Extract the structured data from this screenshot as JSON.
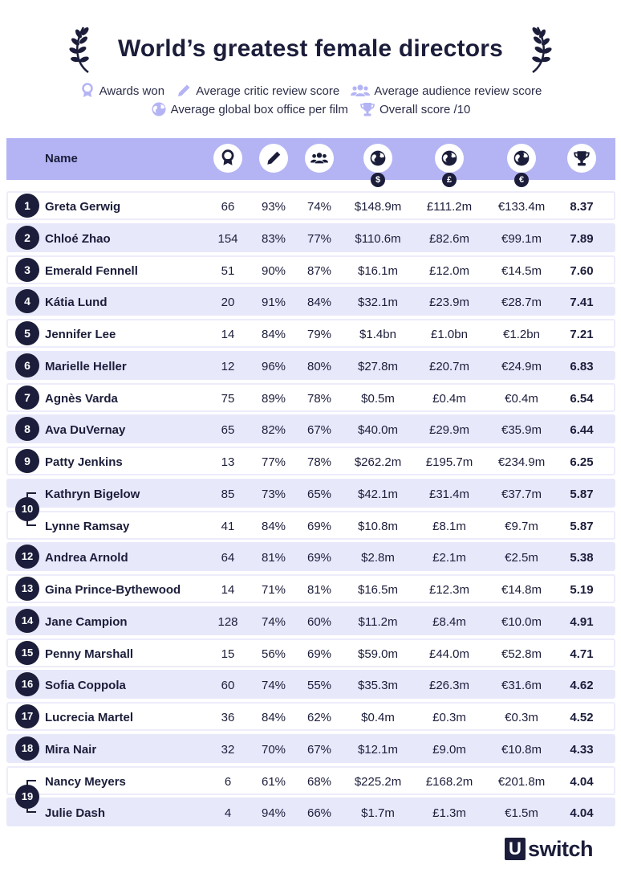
{
  "title": "World’s greatest female directors",
  "legend": {
    "awards": "Awards won",
    "critic": "Average critic review score",
    "audience": "Average audience review score",
    "box_office": "Average global box office per film",
    "overall": "Overall score /10"
  },
  "header": {
    "name": "Name",
    "currency_usd": "$",
    "currency_gbp": "£",
    "currency_eur": "€"
  },
  "colors": {
    "accent": "#b4b4f5",
    "row_shade": "#e8e8fb",
    "ink": "#1b1d3a"
  },
  "rows": [
    {
      "rank": "1",
      "name": "Greta Gerwig",
      "awards": "66",
      "critic": "93%",
      "audience": "74%",
      "usd": "$148.9m",
      "gbp": "£111.2m",
      "eur": "€133.4m",
      "score": "8.37"
    },
    {
      "rank": "2",
      "name": "Chloé Zhao",
      "awards": "154",
      "critic": "83%",
      "audience": "77%",
      "usd": "$110.6m",
      "gbp": "£82.6m",
      "eur": "€99.1m",
      "score": "7.89"
    },
    {
      "rank": "3",
      "name": "Emerald Fennell",
      "awards": "51",
      "critic": "90%",
      "audience": "87%",
      "usd": "$16.1m",
      "gbp": "£12.0m",
      "eur": "€14.5m",
      "score": "7.60"
    },
    {
      "rank": "4",
      "name": "Kátia Lund",
      "awards": "20",
      "critic": "91%",
      "audience": "84%",
      "usd": "$32.1m",
      "gbp": "£23.9m",
      "eur": "€28.7m",
      "score": "7.41"
    },
    {
      "rank": "5",
      "name": "Jennifer Lee",
      "awards": "14",
      "critic": "84%",
      "audience": "79%",
      "usd": "$1.4bn",
      "gbp": "£1.0bn",
      "eur": "€1.2bn",
      "score": "7.21"
    },
    {
      "rank": "6",
      "name": "Marielle Heller",
      "awards": "12",
      "critic": "96%",
      "audience": "80%",
      "usd": "$27.8m",
      "gbp": "£20.7m",
      "eur": "€24.9m",
      "score": "6.83"
    },
    {
      "rank": "7",
      "name": "Agnès Varda",
      "awards": "75",
      "critic": "89%",
      "audience": "78%",
      "usd": "$0.5m",
      "gbp": "£0.4m",
      "eur": "€0.4m",
      "score": "6.54"
    },
    {
      "rank": "8",
      "name": "Ava DuVernay",
      "awards": "65",
      "critic": "82%",
      "audience": "67%",
      "usd": "$40.0m",
      "gbp": "£29.9m",
      "eur": "€35.9m",
      "score": "6.44"
    },
    {
      "rank": "9",
      "name": "Patty Jenkins",
      "awards": "13",
      "critic": "77%",
      "audience": "78%",
      "usd": "$262.2m",
      "gbp": "£195.7m",
      "eur": "€234.9m",
      "score": "6.25"
    },
    {
      "rank": "10",
      "name": "Kathryn Bigelow",
      "awards": "85",
      "critic": "73%",
      "audience": "65%",
      "usd": "$42.1m",
      "gbp": "£31.4m",
      "eur": "€37.7m",
      "score": "5.87"
    },
    {
      "rank": "10",
      "name": "Lynne Ramsay",
      "awards": "41",
      "critic": "84%",
      "audience": "69%",
      "usd": "$10.8m",
      "gbp": "£8.1m",
      "eur": "€9.7m",
      "score": "5.87"
    },
    {
      "rank": "12",
      "name": "Andrea Arnold",
      "awards": "64",
      "critic": "81%",
      "audience": "69%",
      "usd": "$2.8m",
      "gbp": "£2.1m",
      "eur": "€2.5m",
      "score": "5.38"
    },
    {
      "rank": "13",
      "name": "Gina Prince-Bythewood",
      "awards": "14",
      "critic": "71%",
      "audience": "81%",
      "usd": "$16.5m",
      "gbp": "£12.3m",
      "eur": "€14.8m",
      "score": "5.19"
    },
    {
      "rank": "14",
      "name": "Jane Campion",
      "awards": "128",
      "critic": "74%",
      "audience": "60%",
      "usd": "$11.2m",
      "gbp": "£8.4m",
      "eur": "€10.0m",
      "score": "4.91"
    },
    {
      "rank": "15",
      "name": "Penny Marshall",
      "awards": "15",
      "critic": "56%",
      "audience": "69%",
      "usd": "$59.0m",
      "gbp": "£44.0m",
      "eur": "€52.8m",
      "score": "4.71"
    },
    {
      "rank": "16",
      "name": "Sofia Coppola",
      "awards": "60",
      "critic": "74%",
      "audience": "55%",
      "usd": "$35.3m",
      "gbp": "£26.3m",
      "eur": "€31.6m",
      "score": "4.62"
    },
    {
      "rank": "17",
      "name": "Lucrecia Martel",
      "awards": "36",
      "critic": "84%",
      "audience": "62%",
      "usd": "$0.4m",
      "gbp": "£0.3m",
      "eur": "€0.3m",
      "score": "4.52"
    },
    {
      "rank": "18",
      "name": "Mira Nair",
      "awards": "32",
      "critic": "70%",
      "audience": "67%",
      "usd": "$12.1m",
      "gbp": "£9.0m",
      "eur": "€10.8m",
      "score": "4.33"
    },
    {
      "rank": "19",
      "name": "Nancy Meyers",
      "awards": "6",
      "critic": "61%",
      "audience": "68%",
      "usd": "$225.2m",
      "gbp": "£168.2m",
      "eur": "€201.8m",
      "score": "4.04"
    },
    {
      "rank": "19",
      "name": "Julie Dash",
      "awards": "4",
      "critic": "94%",
      "audience": "66%",
      "usd": "$1.7m",
      "gbp": "£1.3m",
      "eur": "€1.5m",
      "score": "4.04"
    }
  ],
  "logo": {
    "mark": "U",
    "word": "switch"
  }
}
